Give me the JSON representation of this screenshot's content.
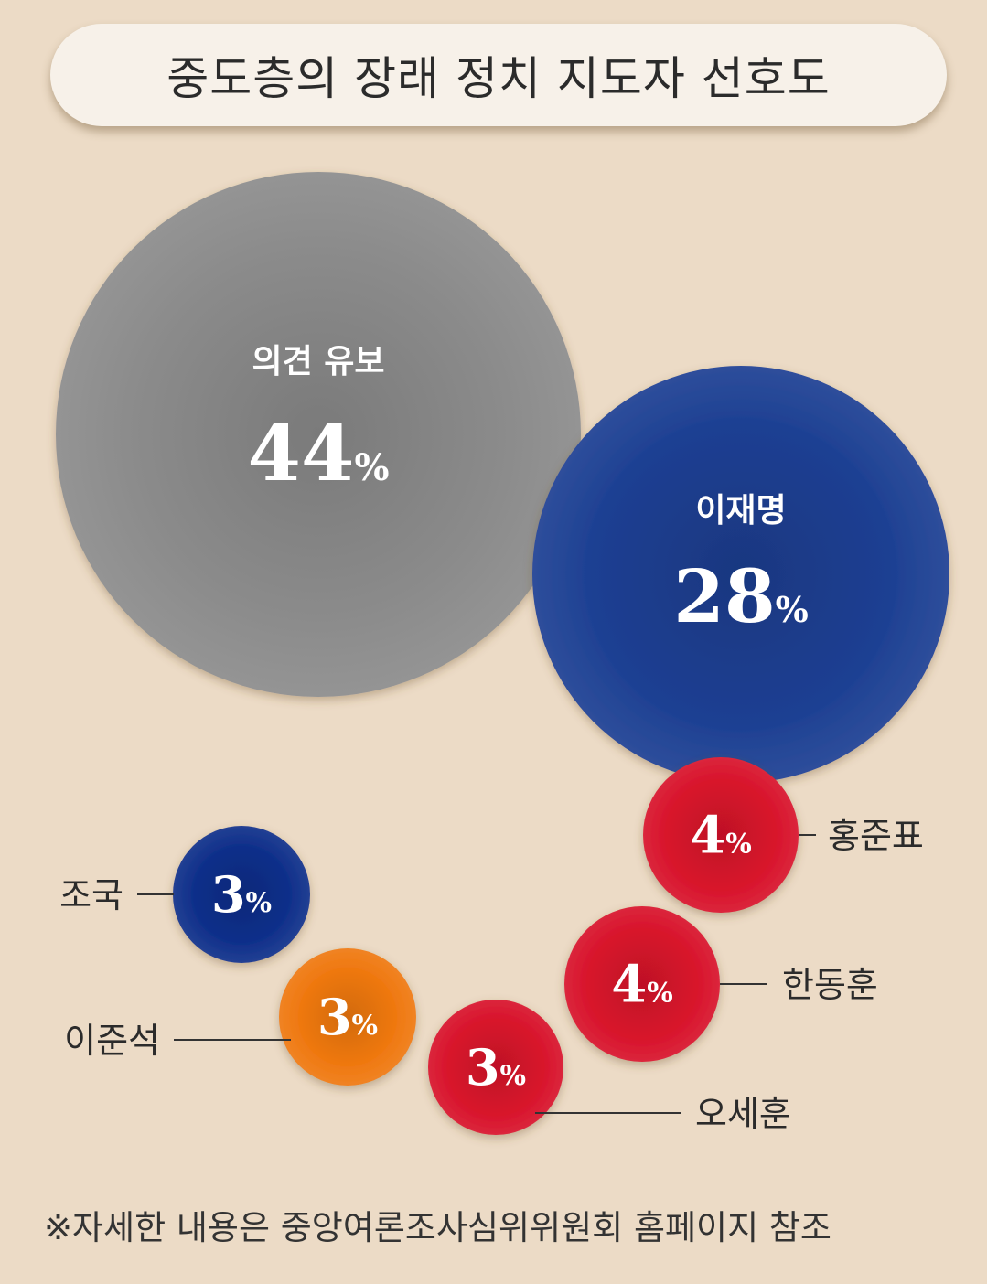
{
  "colors": {
    "background": "#ecdbc6",
    "undecided": "#8b8b8b",
    "democratic_blue": "#1c3f92",
    "cho_kuk_blue": "#0f2f8a",
    "reform_orange": "#ef7810",
    "ppp_red": "#d8132b"
  },
  "chart_data": {
    "type": "bubble",
    "title": "중도층의 장래 정치 지도자 선호도",
    "unit": "%",
    "items": [
      {
        "name": "의견 유보",
        "value": 44,
        "label": "44%",
        "color": "#8b8b8b"
      },
      {
        "name": "이재명",
        "value": 28,
        "label": "28%",
        "color": "#1c3f92"
      },
      {
        "name": "홍준표",
        "value": 4,
        "label": "4%",
        "color": "#d8132b"
      },
      {
        "name": "한동훈",
        "value": 4,
        "label": "4%",
        "color": "#d8132b"
      },
      {
        "name": "오세훈",
        "value": 3,
        "label": "3%",
        "color": "#d8132b"
      },
      {
        "name": "조국",
        "value": 3,
        "label": "3%",
        "color": "#0f2f8a"
      },
      {
        "name": "이준석",
        "value": 3,
        "label": "3%",
        "color": "#ef7810"
      }
    ]
  },
  "footnote": "※자세한 내용은 중앙여론조사심위위원회 홈페이지 참조"
}
